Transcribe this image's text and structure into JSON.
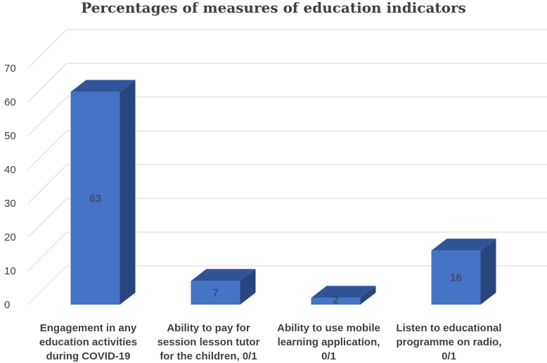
{
  "chart_data": {
    "type": "bar",
    "title": "Percentages of measures of education indicators",
    "categories": [
      [
        "Engagement in any",
        "education activities",
        "during COVID-19"
      ],
      [
        "Ability to pay for",
        "session lesson tutor",
        "for the children, 0/1"
      ],
      [
        "Ability to use mobile",
        "learning application,",
        "0/1"
      ],
      [
        "Listen to educational",
        "programme on radio,",
        "0/1"
      ]
    ],
    "values": [
      63,
      7,
      2,
      16
    ],
    "data_labels": [
      "63",
      "7",
      "2",
      "16"
    ],
    "y_ticks": [
      "0",
      "10",
      "20",
      "30",
      "40",
      "50",
      "60",
      "70"
    ],
    "ylim": [
      0,
      70
    ],
    "grid": true,
    "style": "3d-column",
    "colors": {
      "front": "#4472C4",
      "top": "#2F5597",
      "side": "#27467E",
      "grid": "#D9D9D9",
      "text": "#404040"
    }
  }
}
